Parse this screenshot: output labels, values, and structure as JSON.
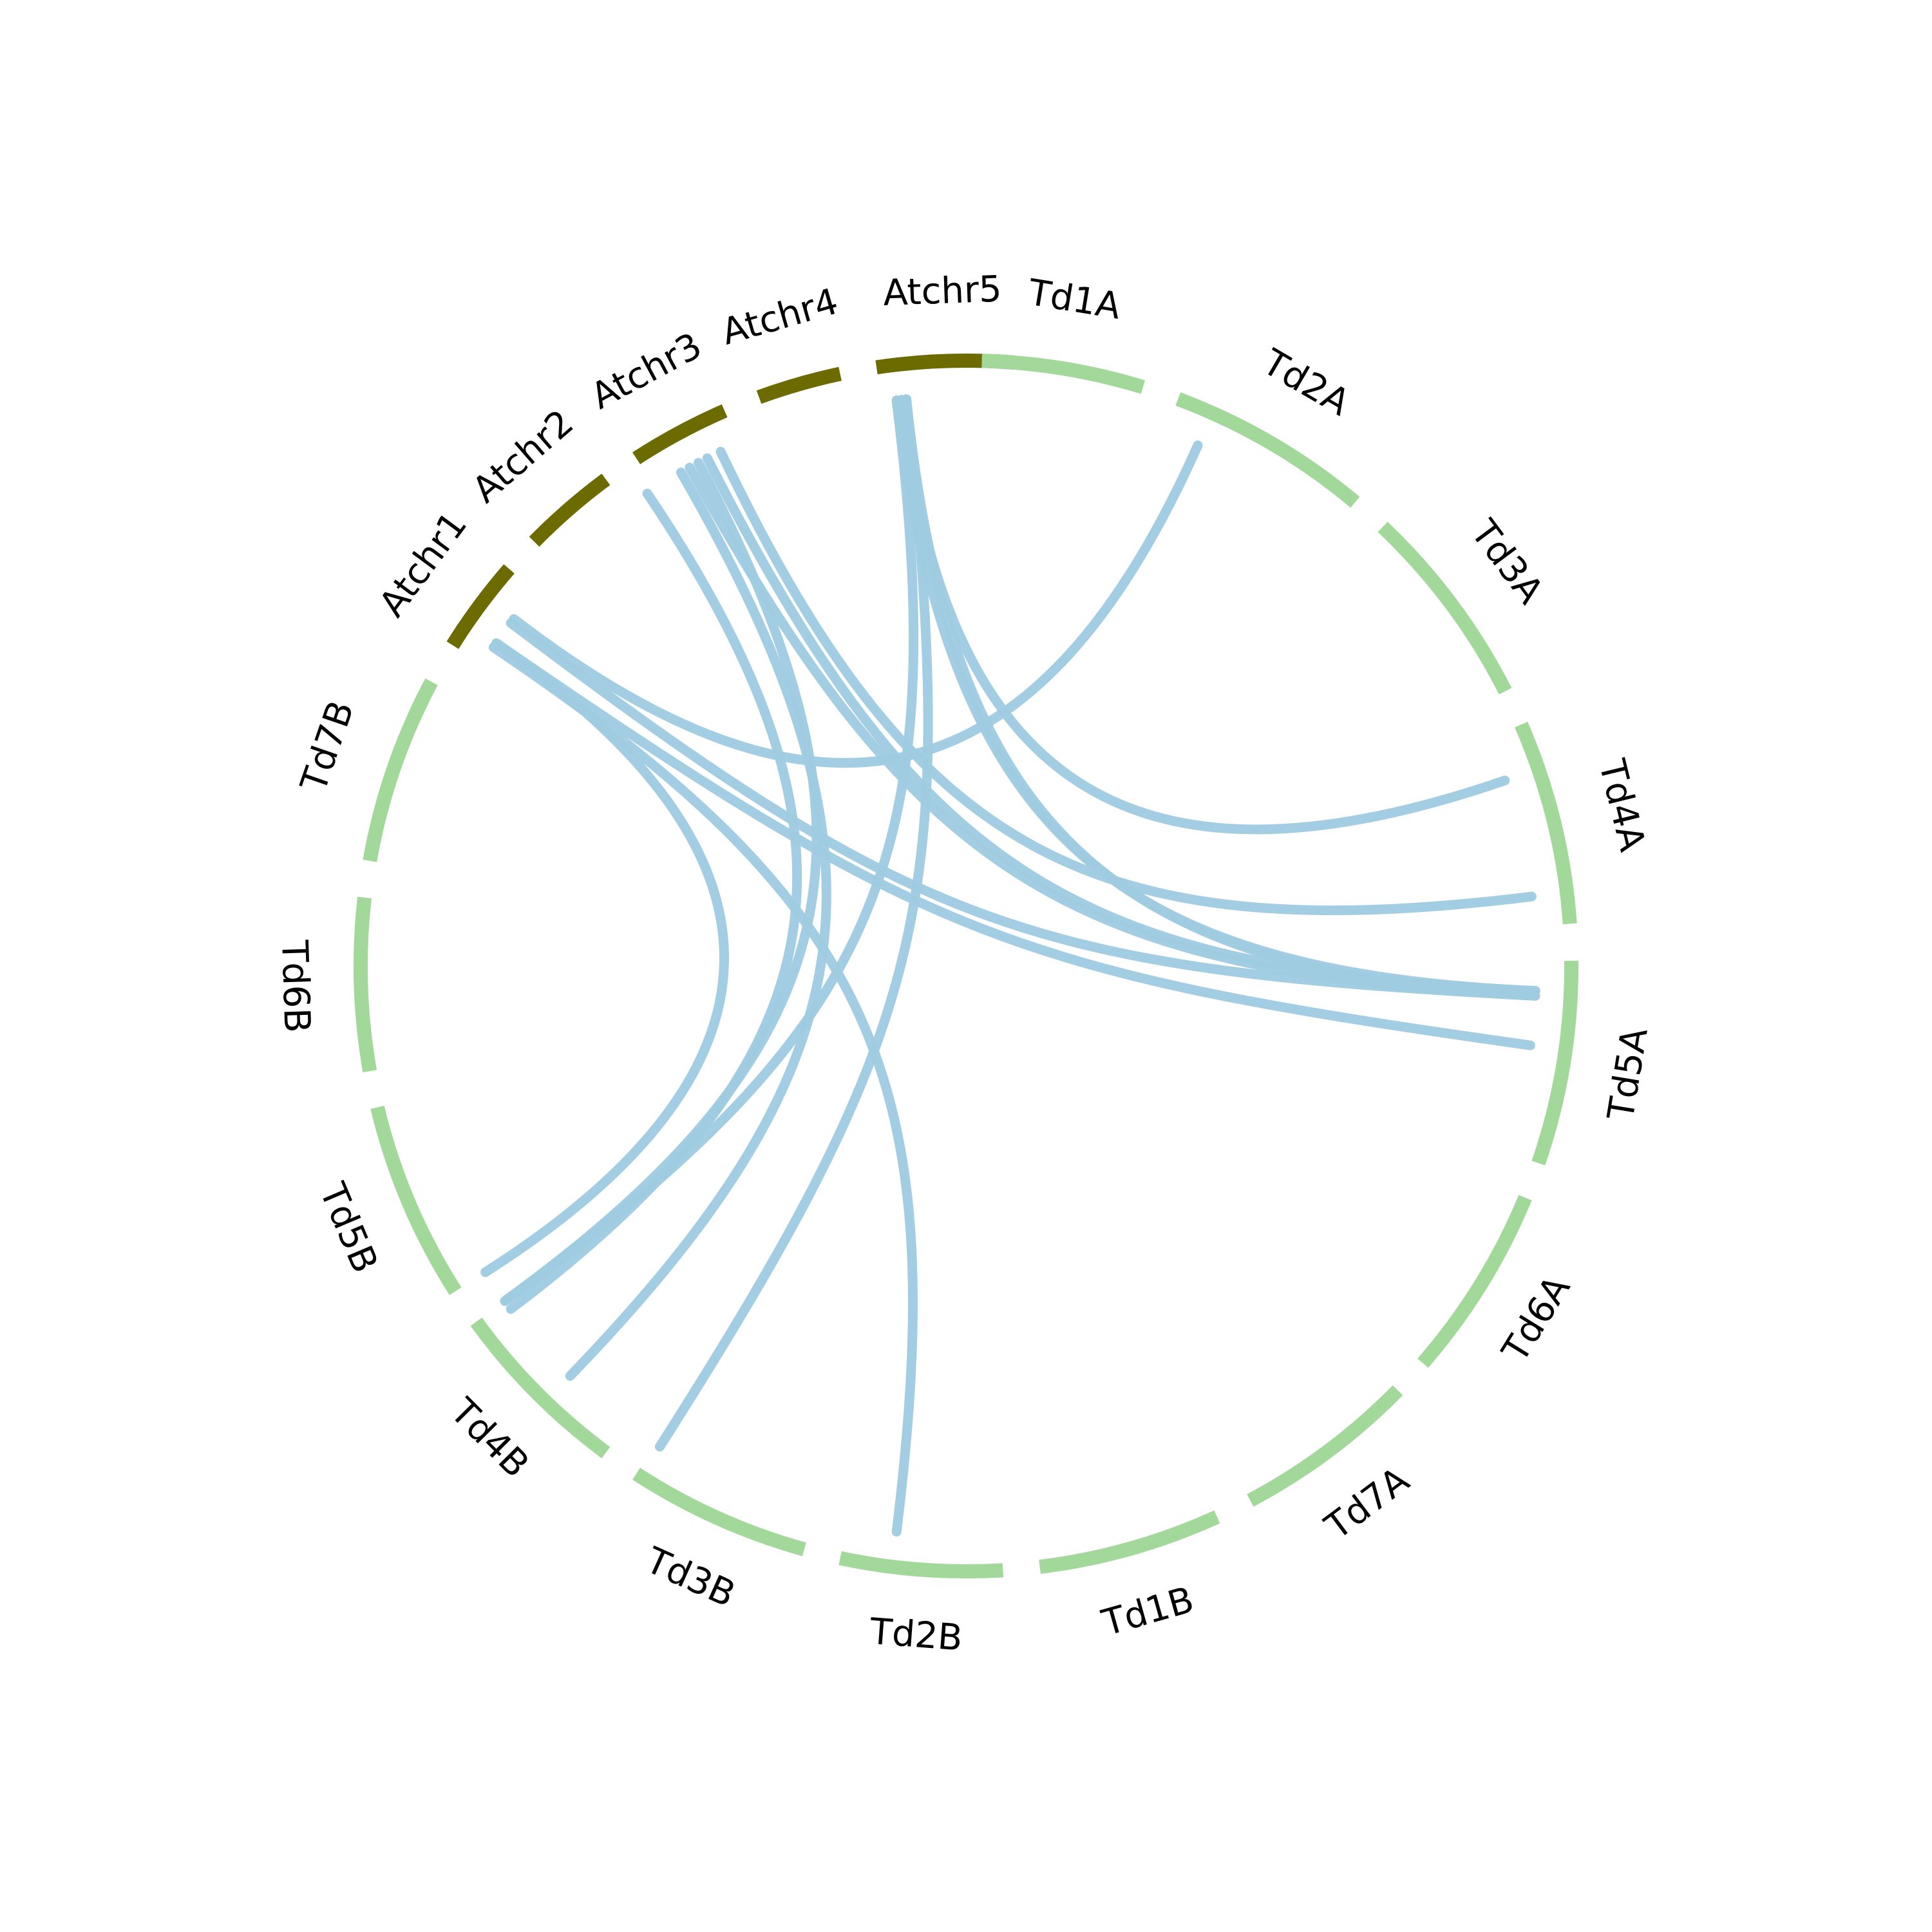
{
  "colors": {
    "arabidopsis_track": "#6b6b00",
    "durum_track": "#a3d89b",
    "link": "#a0cbe2",
    "background": "#ffffff"
  },
  "chromosomes": [
    {
      "id": "Atchr5",
      "label": "Atchr5",
      "group": "arabidopsis",
      "start_deg": 351.5,
      "end_deg": 364.5
    },
    {
      "id": "Td1A",
      "label": "Td1A",
      "group": "durum",
      "start_deg": 1.5,
      "end_deg": 17.0
    },
    {
      "id": "Td2A",
      "label": "Td2A",
      "group": "durum",
      "start_deg": 20.5,
      "end_deg": 40.0
    },
    {
      "id": "Td3A",
      "label": "Td3A",
      "group": "durum",
      "start_deg": 43.5,
      "end_deg": 63.0
    },
    {
      "id": "Td4A",
      "label": "Td4A",
      "group": "durum",
      "start_deg": 66.5,
      "end_deg": 86.0
    },
    {
      "id": "Td5A",
      "label": "Td5A",
      "group": "durum",
      "start_deg": 89.5,
      "end_deg": 109.0
    },
    {
      "id": "Td6A",
      "label": "Td6A",
      "group": "durum",
      "start_deg": 112.5,
      "end_deg": 131.0
    },
    {
      "id": "Td7A",
      "label": "Td7A",
      "group": "durum",
      "start_deg": 134.5,
      "end_deg": 152.0
    },
    {
      "id": "Td1B",
      "label": "Td1B",
      "group": "durum",
      "start_deg": 155.5,
      "end_deg": 173.0
    },
    {
      "id": "Td2B",
      "label": "Td2B",
      "group": "durum",
      "start_deg": 176.5,
      "end_deg": 192.0
    },
    {
      "id": "Td3B",
      "label": "Td3B",
      "group": "durum",
      "start_deg": 195.5,
      "end_deg": 213.0
    },
    {
      "id": "Td4B",
      "label": "Td4B",
      "group": "durum",
      "start_deg": 216.5,
      "end_deg": 234.0
    },
    {
      "id": "Td5B",
      "label": "Td5B",
      "group": "durum",
      "start_deg": 237.5,
      "end_deg": 256.5
    },
    {
      "id": "Td6B",
      "label": "Td6B",
      "group": "durum",
      "start_deg": 260.0,
      "end_deg": 276.5
    },
    {
      "id": "Td7B",
      "label": "Td7B",
      "group": "durum",
      "start_deg": 280.0,
      "end_deg": 298.0
    },
    {
      "id": "Atchr1",
      "label": "Atchr1",
      "group": "arabidopsis",
      "start_deg": 302.0,
      "end_deg": 311.0
    },
    {
      "id": "Atchr2",
      "label": "Atchr2",
      "group": "arabidopsis",
      "start_deg": 314.5,
      "end_deg": 323.5
    },
    {
      "id": "Atchr3",
      "label": "Atchr3",
      "group": "arabidopsis",
      "start_deg": 327.0,
      "end_deg": 336.5
    },
    {
      "id": "Atchr4",
      "label": "Atchr4",
      "group": "arabidopsis",
      "start_deg": 340.0,
      "end_deg": 348.0
    }
  ],
  "links": [
    {
      "from": "Atchr1",
      "to": "Td5A",
      "a_deg": 304.5,
      "b_deg": 98.0
    },
    {
      "from": "Atchr1",
      "to": "Td5A",
      "a_deg": 307.0,
      "b_deg": 93.0
    },
    {
      "from": "Atchr1",
      "to": "Td2B",
      "a_deg": 304.0,
      "b_deg": 187.0
    },
    {
      "from": "Atchr1",
      "to": "Td5B",
      "a_deg": 304.5,
      "b_deg": 237.5
    },
    {
      "from": "Atchr1",
      "to": "Td2A",
      "a_deg": 307.5,
      "b_deg": 24.0
    },
    {
      "from": "Atchr3",
      "to": "Td5A",
      "a_deg": 331.0,
      "b_deg": 93.0
    },
    {
      "from": "Atchr3",
      "to": "Td5B",
      "a_deg": 326.0,
      "b_deg": 233.0
    },
    {
      "from": "Atchr3",
      "to": "Td5B",
      "a_deg": 332.0,
      "b_deg": 234.0
    },
    {
      "from": "Atchr3",
      "to": "Td4A",
      "a_deg": 334.5,
      "b_deg": 83.0
    },
    {
      "from": "Atchr3",
      "to": "Td4B",
      "a_deg": 330.0,
      "b_deg": 224.0
    },
    {
      "from": "Atchr3",
      "to": "Td5A",
      "a_deg": 333.0,
      "b_deg": 92.5
    },
    {
      "from": "Atchr5",
      "to": "Td5A",
      "a_deg": 353.0,
      "b_deg": 92.5
    },
    {
      "from": "Atchr5",
      "to": "Td4A",
      "a_deg": 353.5,
      "b_deg": 71.0
    },
    {
      "from": "Atchr5",
      "to": "Td5A",
      "a_deg": 354.0,
      "b_deg": 93.0
    },
    {
      "from": "Atchr5",
      "to": "Td5B",
      "a_deg": 353.0,
      "b_deg": 234.0
    },
    {
      "from": "Atchr5",
      "to": "Td3B",
      "a_deg": 354.0,
      "b_deg": 212.5
    }
  ]
}
